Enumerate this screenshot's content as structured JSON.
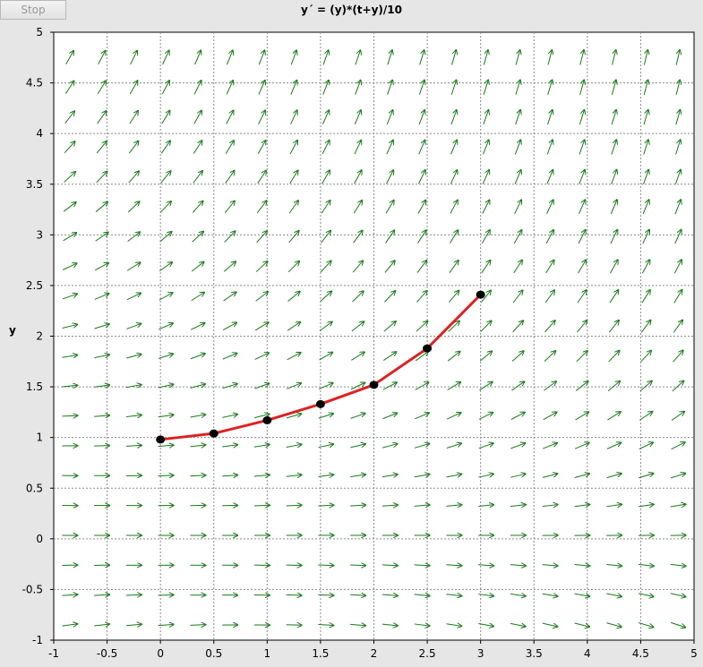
{
  "toolbar": {
    "stop_label": "Stop"
  },
  "colors": {
    "arrow": "#1a7a1a",
    "solution": "#dd2222",
    "point": "#000000",
    "grid": "#8a8a8a",
    "background": "#ffffff"
  },
  "chart_data": {
    "type": "line",
    "title": "y´ = (y)*(t+y)/10",
    "xlabel": "",
    "ylabel": "y",
    "xlim": [
      -1,
      5
    ],
    "ylim": [
      -1,
      5
    ],
    "xticks": [
      "-1",
      "-0.5",
      "0",
      "0.5",
      "1",
      "1.5",
      "2",
      "2.5",
      "3",
      "3.5",
      "4",
      "4.5",
      "5"
    ],
    "yticks": [
      "-1",
      "-0.5",
      "0",
      "0.5",
      "1",
      "1.5",
      "2",
      "2.5",
      "3",
      "3.5",
      "4",
      "4.5",
      "5"
    ],
    "grid": true,
    "direction_field": {
      "equation": "y' = y*(t+y)/10",
      "t_range": [
        -0.85,
        4.85
      ],
      "y_range": [
        -0.85,
        4.75
      ],
      "cols": 20,
      "rows": 20
    },
    "series": [
      {
        "x": [
          0,
          0.5,
          1.0,
          1.5,
          2.0,
          2.5,
          3.0
        ],
        "y": [
          0.98,
          1.04,
          1.17,
          1.33,
          1.52,
          1.88,
          2.41
        ]
      }
    ]
  }
}
